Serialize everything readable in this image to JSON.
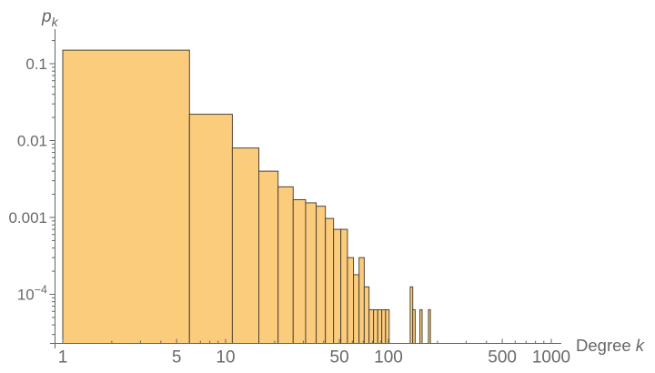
{
  "chart_data": {
    "type": "histogram",
    "title": "",
    "scale": "log-log",
    "xlabel": {
      "text": "Degree",
      "var": "k"
    },
    "ylabel": {
      "var": "p",
      "sub": "k"
    },
    "x_axis": {
      "scale": "log",
      "min": 1,
      "max": 1150,
      "major_ticks": [
        {
          "v": 1,
          "label": "1"
        },
        {
          "v": 5,
          "label": "5"
        },
        {
          "v": 10,
          "label": "10"
        },
        {
          "v": 50,
          "label": "50"
        },
        {
          "v": 100,
          "label": "100"
        },
        {
          "v": 500,
          "label": "500"
        },
        {
          "v": 1000,
          "label": "1000"
        }
      ],
      "minor_ticks": [
        2,
        3,
        4,
        6,
        7,
        8,
        9,
        20,
        30,
        40,
        60,
        70,
        80,
        90,
        200,
        300,
        400,
        600,
        700,
        800,
        900
      ]
    },
    "y_axis": {
      "scale": "log",
      "min": 2.2e-05,
      "max": 0.28,
      "major_ticks": [
        {
          "v": 0.1,
          "label": "0.1"
        },
        {
          "v": 0.01,
          "label": "0.01"
        },
        {
          "v": 0.001,
          "label": "0.001"
        },
        {
          "v": 0.0001,
          "label": "10",
          "sup": "−4"
        }
      ],
      "minor_ticks": [
        0.2,
        0.09,
        0.08,
        0.07,
        0.06,
        0.05,
        0.04,
        0.03,
        0.02,
        0.009,
        0.008,
        0.007,
        0.006,
        0.005,
        0.004,
        0.003,
        0.002,
        0.0009,
        0.0008,
        0.0007,
        0.0006,
        0.0005,
        0.0004,
        0.0003,
        0.0002,
        9e-05,
        8e-05,
        7e-05,
        6e-05,
        5e-05,
        4e-05,
        3e-05
      ]
    },
    "bin_width": 5,
    "bins": [
      {
        "k0": 1,
        "k1": 6,
        "p": 0.15
      },
      {
        "k0": 6,
        "k1": 11,
        "p": 0.022
      },
      {
        "k0": 11,
        "k1": 16,
        "p": 0.008
      },
      {
        "k0": 16,
        "k1": 21,
        "p": 0.004
      },
      {
        "k0": 21,
        "k1": 26,
        "p": 0.0025
      },
      {
        "k0": 26,
        "k1": 31,
        "p": 0.0017
      },
      {
        "k0": 31,
        "k1": 36,
        "p": 0.00155
      },
      {
        "k0": 36,
        "k1": 41,
        "p": 0.0014
      },
      {
        "k0": 41,
        "k1": 46,
        "p": 0.00097
      },
      {
        "k0": 46,
        "k1": 51,
        "p": 0.0007
      },
      {
        "k0": 51,
        "k1": 56,
        "p": 0.0007
      },
      {
        "k0": 56,
        "k1": 61,
        "p": 0.0003
      },
      {
        "k0": 61,
        "k1": 66,
        "p": 0.00018
      },
      {
        "k0": 66,
        "k1": 71,
        "p": 0.0003
      },
      {
        "k0": 71,
        "k1": 76,
        "p": 0.000125
      },
      {
        "k0": 76,
        "k1": 81,
        "p": 6.3e-05
      },
      {
        "k0": 81,
        "k1": 86,
        "p": 6.3e-05
      },
      {
        "k0": 86,
        "k1": 91,
        "p": 6.3e-05
      },
      {
        "k0": 91,
        "k1": 96,
        "p": 6.3e-05
      },
      {
        "k0": 96,
        "k1": 101,
        "p": 6.3e-05
      },
      {
        "k0": 136,
        "k1": 141,
        "p": 0.000125
      },
      {
        "k0": 141,
        "k1": 146,
        "p": 6.3e-05
      },
      {
        "k0": 156,
        "k1": 161,
        "p": 6.3e-05
      },
      {
        "k0": 176,
        "k1": 181,
        "p": 6.3e-05
      }
    ],
    "colors": {
      "bar_fill": "#FCCC7D",
      "bar_edge": "#4F4433",
      "axis": "#656565",
      "tick_label": "#696969",
      "axis_label": "#666666",
      "background": "#FFFFFF"
    }
  }
}
